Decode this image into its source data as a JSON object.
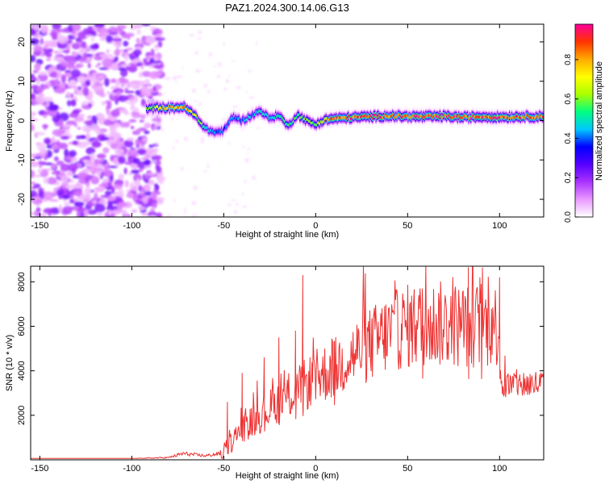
{
  "title": "PAZ1.2024.300.14.06.G13",
  "chart_data": [
    {
      "type": "heatmap",
      "xlabel": "Height of straight line (km)",
      "ylabel": "Frequency (Hz)",
      "xlim": [
        -155,
        124
      ],
      "ylim": [
        -24.5,
        24.5
      ],
      "x_ticks": [
        -150,
        -100,
        -50,
        0,
        50,
        100
      ],
      "y_ticks": [
        -20,
        -10,
        0,
        10,
        20
      ],
      "colorbar": {
        "label": "Normalized spectral amplitude",
        "range": [
          0,
          0.98
        ],
        "ticks": [
          0.0,
          0.2,
          0.4,
          0.6,
          0.8
        ],
        "colormap": [
          "#ffffff",
          "#ea99ff",
          "#aa33ff",
          "#5500ff",
          "#0000ff",
          "#00c8ff",
          "#00ff80",
          "#aaff00",
          "#ffff00",
          "#ffaa00",
          "#ff3300",
          "#ff0099"
        ]
      },
      "ridge_track": {
        "x": [
          -92,
          -85,
          -78,
          -72,
          -66,
          -60,
          -55,
          -50,
          -45,
          -40,
          -36,
          -30,
          -25,
          -20,
          -15,
          -10,
          -5,
          0,
          5,
          10,
          20,
          30,
          40,
          50,
          60,
          70,
          80,
          90,
          100,
          110,
          124
        ],
        "y": [
          3,
          3.3,
          3.2,
          3.5,
          1.5,
          -2,
          -3,
          -2.5,
          1,
          0,
          1,
          2.5,
          0.5,
          1.5,
          -1.5,
          1.5,
          0,
          -1,
          0.2,
          0.5,
          0.8,
          1,
          1.2,
          1,
          1,
          1.1,
          0.8,
          1,
          0.9,
          1,
          1
        ],
        "amplitude": [
          0.55,
          0.7,
          0.78,
          0.85,
          0.72,
          0.5,
          0.42,
          0.4,
          0.45,
          0.42,
          0.45,
          0.5,
          0.5,
          0.52,
          0.55,
          0.55,
          0.58,
          0.62,
          0.78,
          0.88,
          0.9,
          0.9,
          0.9,
          0.9,
          0.92,
          0.92,
          0.9,
          0.9,
          0.9,
          0.88,
          0.88
        ]
      },
      "noise_region_x": [
        -155,
        -90
      ]
    },
    {
      "type": "line",
      "xlabel": "Height of straight line (km)",
      "ylabel": "SNR (10 * v/v)",
      "xlim": [
        -155,
        124
      ],
      "ylim": [
        0,
        8700
      ],
      "x_ticks": [
        -150,
        -100,
        -50,
        0,
        50,
        100
      ],
      "y_ticks": [
        2000,
        4000,
        6000,
        8000
      ],
      "line_color": "#ee3333",
      "envelope": {
        "x": [
          -155,
          -100,
          -80,
          -72,
          -60,
          -50,
          -45,
          -40,
          -30,
          -20,
          -10,
          0,
          10,
          20,
          30,
          40,
          50,
          60,
          70,
          80,
          90,
          100,
          101,
          110,
          124
        ],
        "y": [
          40,
          50,
          100,
          280,
          180,
          300,
          900,
          1400,
          2000,
          2600,
          3100,
          3700,
          4100,
          4700,
          5200,
          5700,
          6000,
          6100,
          6100,
          6050,
          6050,
          6050,
          3300,
          3400,
          3400
        ]
      },
      "spikes": [
        {
          "x": -48,
          "y": 2600
        },
        {
          "x": -40,
          "y": 3900
        },
        {
          "x": -28,
          "y": 4600
        },
        {
          "x": -20,
          "y": 5500
        },
        {
          "x": -11,
          "y": 5800
        },
        {
          "x": -7,
          "y": 8300
        },
        {
          "x": 10,
          "y": 5300
        },
        {
          "x": 58,
          "y": 7700
        },
        {
          "x": 83,
          "y": 8650
        },
        {
          "x": 90,
          "y": 7900
        },
        {
          "x": 100,
          "y": 8200
        }
      ]
    }
  ]
}
